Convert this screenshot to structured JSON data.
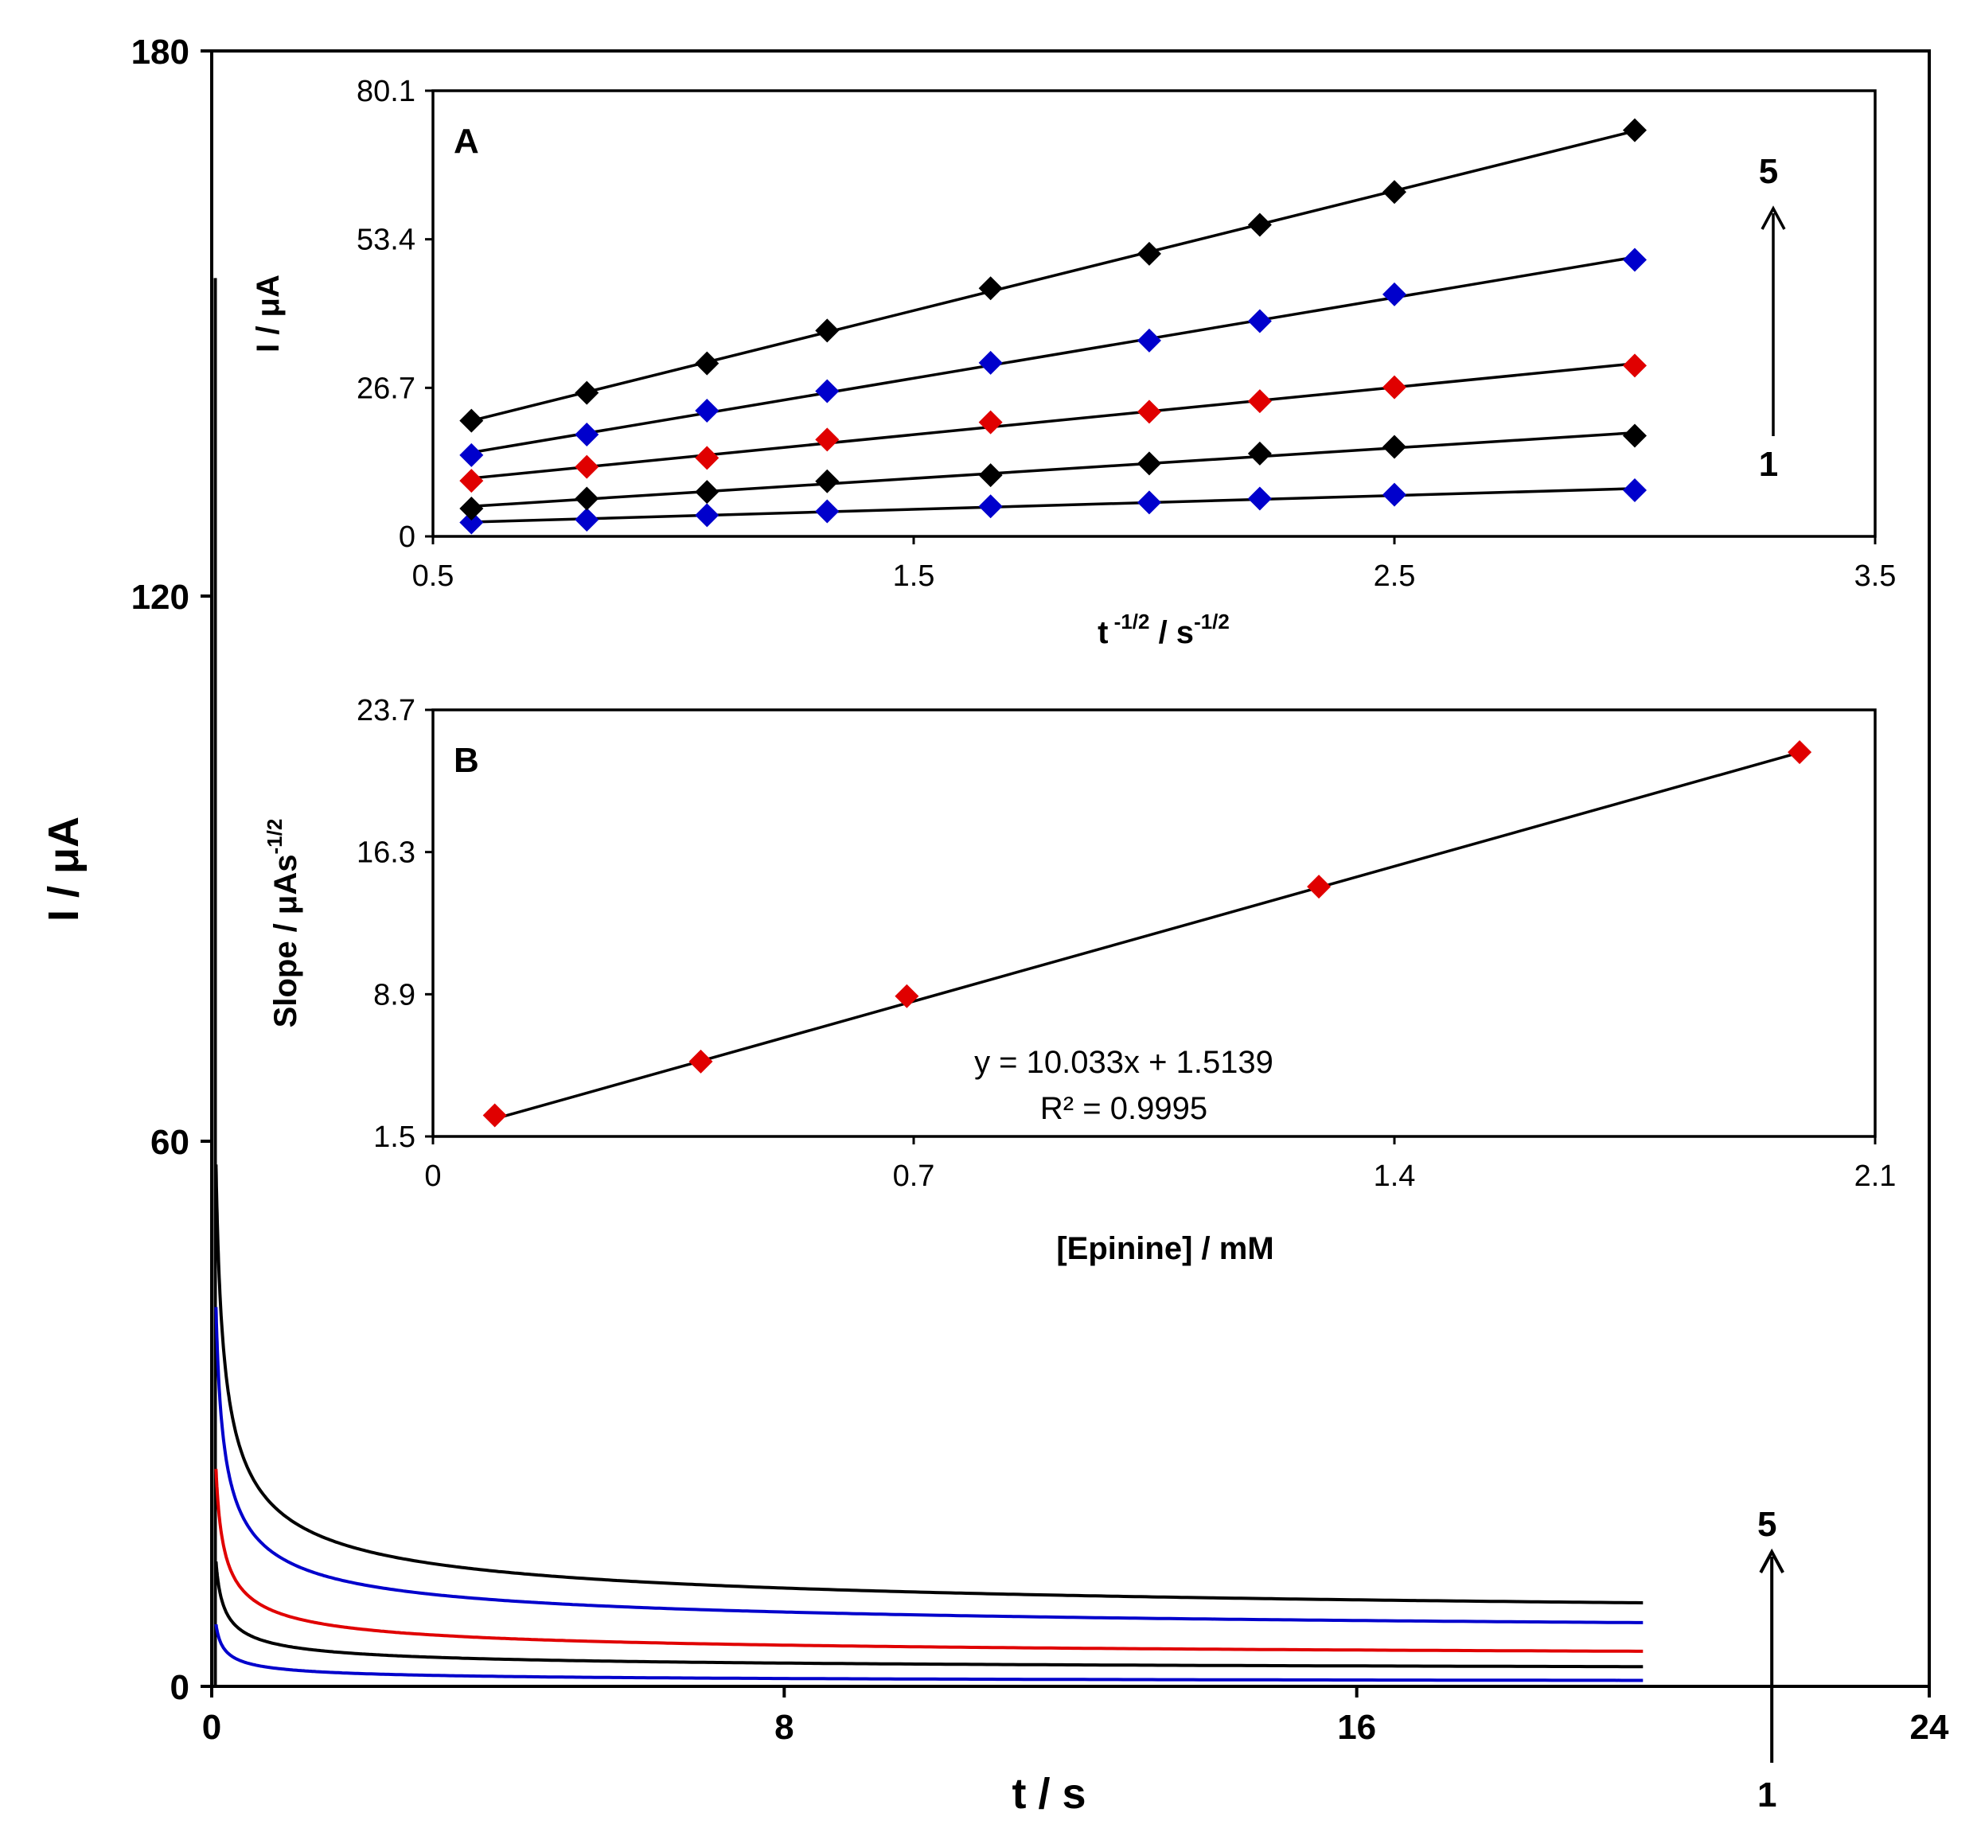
{
  "chart_data": [
    {
      "id": "main",
      "type": "line",
      "title": "",
      "xlabel": "t / s",
      "ylabel": "I / μA",
      "xlim": [
        0,
        24
      ],
      "ylim": [
        0,
        180
      ],
      "xticks": [
        "0",
        "8",
        "16",
        "24"
      ],
      "yticks": [
        "0",
        "60",
        "120",
        "180"
      ],
      "x_tick_values": [
        0,
        8,
        16,
        24
      ],
      "y_tick_values": [
        0,
        60,
        120,
        180
      ],
      "t_end": 20,
      "curve_model": "I = (a / sqrt(t)) + b",
      "series": [
        {
          "name": "1",
          "color": "#0000cc",
          "a": 1.6,
          "b": 0.3,
          "end_value": 0.7
        },
        {
          "name": "2",
          "color": "#000000",
          "a": 3.0,
          "b": 1.5,
          "end_value": 2.2
        },
        {
          "name": "3",
          "color": "#e00000",
          "a": 5.2,
          "b": 2.7,
          "end_value": 3.9
        },
        {
          "name": "4",
          "color": "#0000cc",
          "a": 9.0,
          "b": 5.0,
          "end_value": 6.6
        },
        {
          "name": "5",
          "color": "#000000",
          "a": 12.5,
          "b": 6.4,
          "end_value": 8.8
        }
      ],
      "arrow_label_top": "5",
      "arrow_label_bottom": "1"
    },
    {
      "id": "inset-A",
      "type": "scatter",
      "panel_label": "A",
      "xlabel": "t",
      "xlabel_sup1": "-1/2",
      "xlabel_mid": " / s",
      "xlabel_sup2": "-1/2",
      "ylabel": "I / μA",
      "xlim": [
        0.5,
        3.5
      ],
      "ylim": [
        0,
        80.1
      ],
      "xticks": [
        "0.5",
        "1.5",
        "2.5",
        "3.5"
      ],
      "yticks": [
        "0",
        "26.7",
        "53.4",
        "80.1"
      ],
      "x_tick_values": [
        0.5,
        1.5,
        2.5,
        3.5
      ],
      "y_tick_values": [
        0,
        26.7,
        53.4,
        80.1
      ],
      "x": [
        0.58,
        0.82,
        1.07,
        1.32,
        1.66,
        1.99,
        2.22,
        2.5,
        3.0
      ],
      "series": [
        {
          "name": "1",
          "color": "#0000cc",
          "values": [
            2.5,
            3.0,
            3.8,
            4.5,
            5.4,
            6.1,
            6.8,
            7.5,
            8.3
          ]
        },
        {
          "name": "2",
          "color": "#000000",
          "values": [
            5.0,
            6.8,
            8.0,
            9.9,
            11.0,
            13.1,
            14.9,
            16.1,
            18.1
          ]
        },
        {
          "name": "3",
          "color": "#e00000",
          "values": [
            10.0,
            12.5,
            14.1,
            17.4,
            20.5,
            22.4,
            24.3,
            26.8,
            30.7
          ]
        },
        {
          "name": "4",
          "color": "#0000cc",
          "values": [
            14.6,
            18.3,
            22.6,
            26.1,
            31.2,
            35.2,
            38.7,
            43.5,
            49.7
          ]
        },
        {
          "name": "5",
          "color": "#000000",
          "values": [
            20.8,
            25.8,
            31.1,
            37.0,
            44.6,
            50.8,
            56.0,
            61.9,
            73.0
          ]
        }
      ],
      "arrow_label_top": "5",
      "arrow_label_bottom": "1"
    },
    {
      "id": "inset-B",
      "type": "scatter",
      "panel_label": "B",
      "xlabel": "[Epinine] / mM",
      "ylabel": "Slope / μAs",
      "ylabel_sup": "-1/2",
      "xlim": [
        0,
        2.1
      ],
      "ylim": [
        1.5,
        23.7
      ],
      "xticks": [
        "0",
        "0.7",
        "1.4",
        "2.1"
      ],
      "yticks": [
        "1.5",
        "8.9",
        "16.3",
        "23.7"
      ],
      "x_tick_values": [
        0,
        0.7,
        1.4,
        2.1
      ],
      "y_tick_values": [
        1.5,
        8.9,
        16.3,
        23.7
      ],
      "x": [
        0.09,
        0.39,
        0.69,
        1.29,
        1.99
      ],
      "values": [
        2.6,
        5.4,
        8.8,
        14.5,
        21.5
      ],
      "marker_color": "#e00000",
      "trendline": {
        "slope": 10.033,
        "intercept": 1.5139
      },
      "equation": "y = 10.033x  + 1.5139",
      "r_squared": "R² = 0.9995"
    }
  ]
}
